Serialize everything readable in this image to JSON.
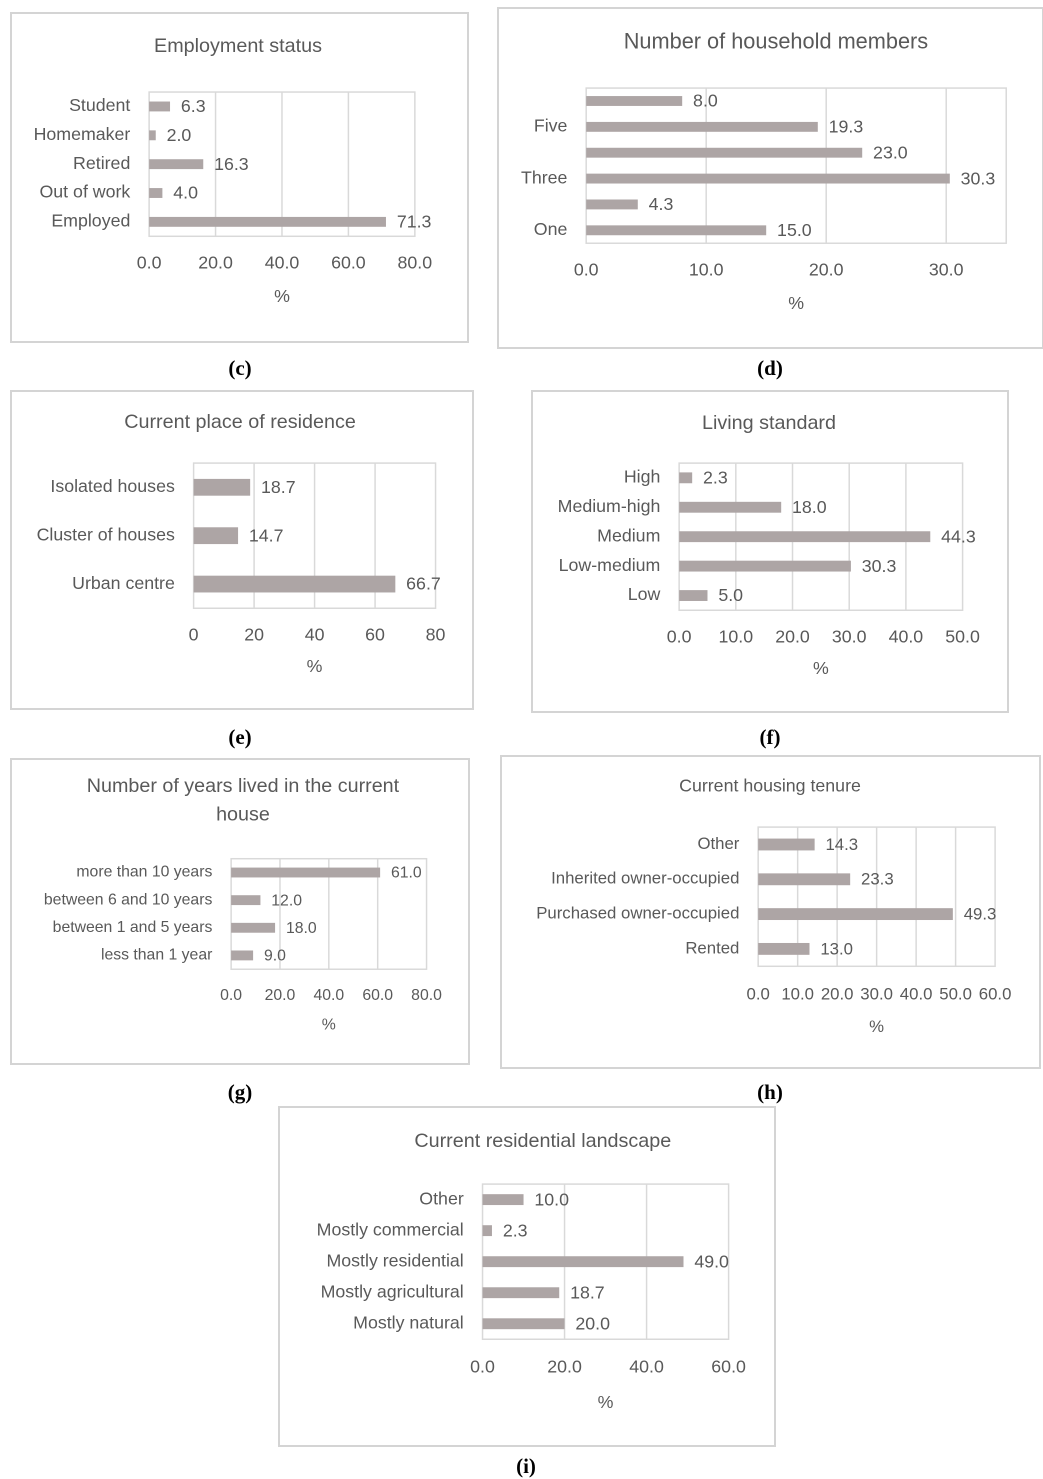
{
  "chart_data": [
    {
      "id": "c",
      "sublabel": "(c)",
      "type": "bar",
      "title": "Employment status",
      "title_lines": [
        "Employment status"
      ],
      "xlabel": "%",
      "categories": [
        "Student",
        "Homemaker",
        "Retired",
        "Out of work",
        "Employed"
      ],
      "values": [
        6.3,
        2.0,
        16.3,
        4.0,
        71.3
      ],
      "value_labels": [
        "6.3",
        "2.0",
        "16.3",
        "4.0",
        "71.3"
      ],
      "category_labels": [
        "Student",
        "Homemaker",
        "Retired",
        "Out of work",
        "Employed"
      ],
      "xlim": [
        0,
        80
      ],
      "ticks": [
        "0.0",
        "20.0",
        "40.0",
        "60.0",
        "80.0"
      ],
      "bar_color": "#ada5a5",
      "grid": true
    },
    {
      "id": "d",
      "sublabel": "(d)",
      "type": "bar",
      "title": "Number of household members",
      "title_lines": [
        "Number of household members"
      ],
      "xlabel": "%",
      "categories": [
        "",
        "Five",
        "",
        "Three",
        "",
        "One"
      ],
      "values": [
        8.0,
        19.3,
        23.0,
        30.3,
        4.3,
        15.0
      ],
      "value_labels": [
        "8.0",
        "19.3",
        "23.0",
        "30.3",
        "4.3",
        "15.0"
      ],
      "category_labels": [
        "",
        "Five",
        "",
        "Three",
        "",
        "One"
      ],
      "xlim": [
        0,
        35
      ],
      "ticks": [
        "0.0",
        "10.0",
        "20.0",
        "30.0"
      ],
      "bar_color": "#ada5a5",
      "grid": true
    },
    {
      "id": "e",
      "sublabel": "(e)",
      "type": "bar",
      "title": "Current place of residence",
      "title_lines": [
        "Current place of residence"
      ],
      "xlabel": "%",
      "categories": [
        "Isolated houses",
        "Cluster of houses",
        "Urban centre"
      ],
      "values": [
        18.7,
        14.7,
        66.7
      ],
      "value_labels": [
        "18.7",
        "14.7",
        "66.7"
      ],
      "category_labels": [
        "Isolated houses",
        "Cluster of houses",
        "Urban centre"
      ],
      "xlim": [
        0,
        80
      ],
      "ticks": [
        "0",
        "20",
        "40",
        "60",
        "80"
      ],
      "bar_color": "#ada5a5",
      "grid": true
    },
    {
      "id": "f",
      "sublabel": "(f)",
      "type": "bar",
      "title": "Living standard",
      "title_lines": [
        "Living standard"
      ],
      "xlabel": "%",
      "categories": [
        "High",
        "Medium-high",
        "Medium",
        "Low-medium",
        "Low"
      ],
      "values": [
        2.3,
        18.0,
        44.3,
        30.3,
        5.0
      ],
      "value_labels": [
        "2.3",
        "18.0",
        "44.3",
        "30.3",
        "5.0"
      ],
      "category_labels": [
        "High",
        "Medium-high",
        "Medium",
        "Low-medium",
        "Low"
      ],
      "xlim": [
        0,
        50
      ],
      "ticks": [
        "0.0",
        "10.0",
        "20.0",
        "30.0",
        "40.0",
        "50.0"
      ],
      "bar_color": "#ada5a5",
      "grid": true
    },
    {
      "id": "g",
      "sublabel": "(g)",
      "type": "bar",
      "title": "Number of years lived in the current house",
      "title_lines": [
        "Number of years lived in the current",
        "house"
      ],
      "xlabel": "%",
      "categories": [
        "more than 10 years",
        "between 6 and 10 years",
        "between 1 and 5 years",
        "less than 1 year"
      ],
      "values": [
        61.0,
        12.0,
        18.0,
        9.0
      ],
      "value_labels": [
        "61.0",
        "12.0",
        "18.0",
        "9.0"
      ],
      "category_labels": [
        "more than 10 years",
        "between 6 and 10 years",
        "between 1 and 5 years",
        "less than 1 year"
      ],
      "xlim": [
        0,
        80
      ],
      "ticks": [
        "0.0",
        "20.0",
        "40.0",
        "60.0",
        "80.0"
      ],
      "bar_color": "#ada5a5",
      "grid": true
    },
    {
      "id": "h",
      "sublabel": "(h)",
      "type": "bar",
      "title": "Current housing tenure",
      "title_lines": [
        "Current housing tenure"
      ],
      "xlabel": "%",
      "categories": [
        "Other",
        "Inherited owner-occupied",
        "Purchased owner-occupied",
        "Rented"
      ],
      "values": [
        14.3,
        23.3,
        49.3,
        13.0
      ],
      "value_labels": [
        "14.3",
        "23.3",
        "49.3",
        "13.0"
      ],
      "category_labels": [
        "Other",
        "Inherited owner-occupied",
        "Purchased owner-occupied",
        "Rented"
      ],
      "xlim": [
        0,
        60
      ],
      "ticks": [
        "0.0",
        "10.0",
        "20.0",
        "30.0",
        "40.0",
        "50.0",
        "60.0"
      ],
      "bar_color": "#ada5a5",
      "grid": true
    },
    {
      "id": "i",
      "sublabel": "(i)",
      "type": "bar",
      "title": "Current residential landscape",
      "title_lines": [
        "Current residential landscape"
      ],
      "xlabel": "%",
      "categories": [
        "Other",
        "Mostly commercial",
        "Mostly residential",
        "Mostly agricultural",
        "Mostly natural"
      ],
      "values": [
        10.0,
        2.3,
        49.0,
        18.7,
        20.0
      ],
      "value_labels": [
        "10.0",
        "2.3",
        "49.0",
        "18.7",
        "20.0"
      ],
      "category_labels": [
        "Other",
        "Mostly commercial",
        "Mostly residential",
        "Mostly agricultural",
        "Mostly natural"
      ],
      "xlim": [
        0,
        60
      ],
      "ticks": [
        "0.0",
        "20.0",
        "40.0",
        "60.0"
      ],
      "bar_color": "#ada5a5",
      "grid": true
    }
  ]
}
